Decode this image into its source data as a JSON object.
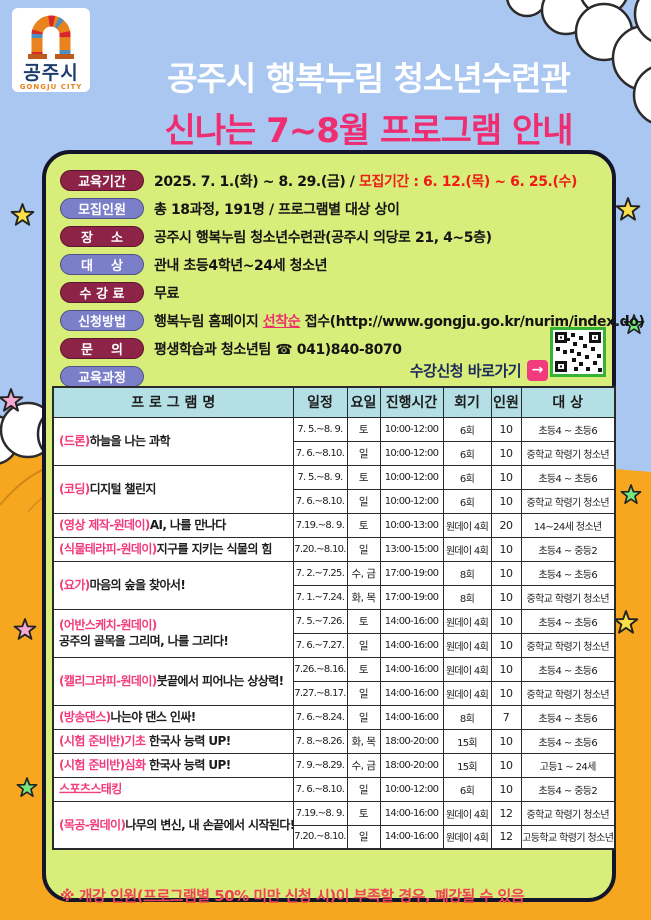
{
  "header": {
    "logo": {
      "city": "공주시",
      "city_en": "GONGJU CITY"
    },
    "title_line1": "공주시 행복누림 청소년수련관",
    "title_line2": "신나는 7~8월 프로그램 안내"
  },
  "info": {
    "rows": [
      {
        "label": "교육기간",
        "pill": "maroon",
        "segments": [
          {
            "text": "2025. 7. 1.(화) ~ 8. 29.(금) / "
          },
          {
            "text": "모집기간 : 6. 12.(목) ~ 6. 25.(수)",
            "style": "red"
          }
        ]
      },
      {
        "label": "모집인원",
        "pill": "blue",
        "segments": [
          {
            "text": "총 18과정, 191명 / 프로그램별 대상 상이"
          }
        ]
      },
      {
        "label": "장    소",
        "pill": "maroon",
        "segments": [
          {
            "text": "공주시 행복누림 청소년수련관(공주시 의당로 21, 4~5층)"
          }
        ]
      },
      {
        "label": "대    상",
        "pill": "blue",
        "segments": [
          {
            "text": "관내 초등4학년~24세 청소년"
          }
        ]
      },
      {
        "label": "수 강 료",
        "pill": "maroon",
        "segments": [
          {
            "text": "무료"
          }
        ]
      },
      {
        "label": "신청방법",
        "pill": "blue",
        "segments": [
          {
            "text": "행복누림 홈페이지 "
          },
          {
            "text": "선착순",
            "style": "hot"
          },
          {
            "text": " 접수(http://www.gongju.go.kr/nurim/index.do)"
          }
        ]
      },
      {
        "label": "문    의",
        "pill": "maroon",
        "segments": [
          {
            "text": "평생학습과 청소년팀 ☎ 041)840-8070"
          }
        ]
      },
      {
        "label": "교육과정",
        "pill": "blue",
        "segments": []
      }
    ],
    "apply_cta": "수강신청 바로가기",
    "arrow_glyph": "→",
    "qr_label": "qr-code"
  },
  "table": {
    "headers": [
      "프 로 그 램 명",
      "일정",
      "요일",
      "진행시간",
      "회기",
      "인원",
      "대 상"
    ],
    "programs": [
      {
        "prefix": "(드론)",
        "name": "하늘을 나는 과학",
        "sessions": [
          {
            "dates": "7. 5.~8. 9.",
            "day": "토",
            "time": "10:00-12:00",
            "count": "6회",
            "cap": "10",
            "target": "초등4 ~ 초등6"
          },
          {
            "dates": "7. 6.~8.10.",
            "day": "일",
            "time": "10:00-12:00",
            "count": "6회",
            "cap": "10",
            "target": "중학교 학령기 청소년"
          }
        ]
      },
      {
        "prefix": "(코딩)",
        "name": "디지털 챌린지",
        "sessions": [
          {
            "dates": "7. 5.~8. 9.",
            "day": "토",
            "time": "10:00-12:00",
            "count": "6회",
            "cap": "10",
            "target": "초등4 ~ 초등6"
          },
          {
            "dates": "7. 6.~8.10.",
            "day": "일",
            "time": "10:00-12:00",
            "count": "6회",
            "cap": "10",
            "target": "중학교 학령기 청소년"
          }
        ]
      },
      {
        "prefix": "(영상  제작-원데이)",
        "name": "AI, 나를 만나다",
        "sessions": [
          {
            "dates": "7.19.~8. 9.",
            "day": "토",
            "time": "10:00-13:00",
            "count": "원데이 4회",
            "cap": "20",
            "target": "14~24세 청소년"
          }
        ]
      },
      {
        "prefix": "(식물테라피-원데이)",
        "name": "지구를 지키는 식물의 힘",
        "sessions": [
          {
            "dates": "7.20.~8.10.",
            "day": "일",
            "time": "13:00-15:00",
            "count": "원데이 4회",
            "cap": "10",
            "target": "초등4 ~ 중등2"
          }
        ]
      },
      {
        "prefix": "(요가)",
        "name": "마음의 숲을 찾아서!",
        "sessions": [
          {
            "dates": "7. 2.~7.25.",
            "day": "수, 금",
            "time": "17:00-19:00",
            "count": "8회",
            "cap": "10",
            "target": "초등4 ~ 초등6"
          },
          {
            "dates": "7. 1.~7.24.",
            "day": "화, 목",
            "time": "17:00-19:00",
            "count": "8회",
            "cap": "10",
            "target": "중학교 학령기 청소년"
          }
        ]
      },
      {
        "prefix": "(어반스케치-원데이)",
        "name": "",
        "name2": "공주의 골목을 그리며, 나를 그리다!",
        "sessions": [
          {
            "dates": "7. 5.~7.26.",
            "day": "토",
            "time": "14:00-16:00",
            "count": "원데이 4회",
            "cap": "10",
            "target": "초등4 ~ 초등6"
          },
          {
            "dates": "7. 6.~7.27.",
            "day": "일",
            "time": "14:00-16:00",
            "count": "원데이 4회",
            "cap": "10",
            "target": "중학교 학령기 청소년"
          }
        ]
      },
      {
        "prefix": "(캘리그라피-원데이)",
        "name": "붓끝에서 피어나는 상상력!",
        "sessions": [
          {
            "dates": "7.26.~8.16.",
            "day": "토",
            "time": "14:00-16:00",
            "count": "원데이 4회",
            "cap": "10",
            "target": "초등4 ~ 초등6"
          },
          {
            "dates": "7.27.~8.17.",
            "day": "일",
            "time": "14:00-16:00",
            "count": "원데이 4회",
            "cap": "10",
            "target": "중학교 학령기 청소년"
          }
        ]
      },
      {
        "prefix": "(방송댄스)",
        "name": "나는야 댄스 인싸!",
        "sessions": [
          {
            "dates": "7. 6.~8.24.",
            "day": "일",
            "time": "14:00-16:00",
            "count": "8회",
            "cap": "7",
            "target": "초등4 ~ 초등6"
          }
        ]
      },
      {
        "prefix": "(시험 준비반)기초",
        "name": " 한국사 능력 UP!",
        "sessions": [
          {
            "dates": "7. 8.~8.26.",
            "day": "화, 목",
            "time": "18:00-20:00",
            "count": "15회",
            "cap": "10",
            "target": "초등4 ~ 초등6"
          }
        ]
      },
      {
        "prefix": "(시험 준비반)심화",
        "name": " 한국사 능력 UP!",
        "sessions": [
          {
            "dates": "7. 9.~8.29.",
            "day": "수, 금",
            "time": "18:00-20:00",
            "count": "15회",
            "cap": "10",
            "target": "고등1 ~ 24세"
          }
        ]
      },
      {
        "prefix": "스포츠스태킹",
        "name": "",
        "sessions": [
          {
            "dates": "7. 6.~8.10.",
            "day": "일",
            "time": "10:00-12:00",
            "count": "6회",
            "cap": "10",
            "target": "초등4 ~ 중등2"
          }
        ]
      },
      {
        "prefix": "(목공-원데이)",
        "name": "나무의 변신, 내 손끝에서 시작된다!",
        "sessions": [
          {
            "dates": "7.19.~8. 9.",
            "day": "토",
            "time": "14:00-16:00",
            "count": "원데이 4회",
            "cap": "12",
            "target": "중학교 학령기 청소년"
          },
          {
            "dates": "7.20.~8.10.",
            "day": "일",
            "time": "14:00-16:00",
            "count": "원데이 4회",
            "cap": "12",
            "target": "고등학교 학령기 청소년"
          }
        ]
      }
    ]
  },
  "footnote": "※ 개강 인원(프로그램별 50% 미만 신청 시)이 부족할 경우, 폐강될 수 있음",
  "colors": {
    "sky": "#a9c7f1",
    "ground": "#f7a71f",
    "box-bg": "#d9ee7a",
    "box-border": "#14142a",
    "maroon": "#8d2347",
    "blue": "#7b7fca",
    "pink": "#ee2e70",
    "red": "#ed1c16",
    "teal": "#b4e0e5",
    "navy": "#1b2a5e",
    "qr-green": "#35b335",
    "footnote": "#ee4356"
  },
  "decor": {
    "star_colors": {
      "yellow": "#f9e04b",
      "pink": "#f5a8d0",
      "green": "#74e87e"
    }
  }
}
